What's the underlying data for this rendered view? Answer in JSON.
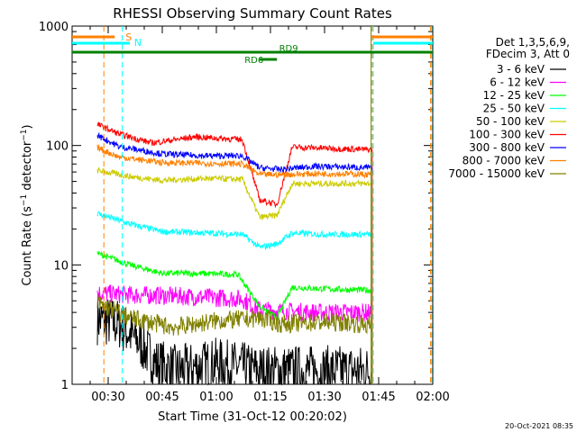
{
  "chart_data": {
    "type": "line",
    "title": "RHESSI Observing Summary Count Rates",
    "xlabel": "Start Time (31-Oct-12 00:20:02)",
    "ylabel": "Count Rate (s⁻¹ detector⁻¹)",
    "ylabel_main": "Count Rate (s",
    "ylabel_mid": " detector",
    "ylabel_end": ")",
    "yscale": "log",
    "ylim": [
      1,
      1000
    ],
    "xlim": [
      "00:20",
      "02:00"
    ],
    "grid": false,
    "x_ticks": [
      "00:30",
      "00:45",
      "01:00",
      "01:15",
      "01:30",
      "01:45",
      "02:00"
    ],
    "y_ticks": [
      "1",
      "10",
      "100",
      "1000"
    ],
    "legend_position": "right",
    "legend_header": [
      "Det 1,3,5,6,9,",
      "FDecim 3, Att 0"
    ],
    "flags": [
      {
        "label": "S",
        "color": "#ff8000"
      },
      {
        "label": "N",
        "color": "#00ffff"
      },
      {
        "label": "RD9",
        "color": "#008000"
      },
      {
        "label": "RD6",
        "color": "#008000"
      }
    ],
    "timestamp": "20-Oct-2021 08:35",
    "series": [
      {
        "name": "3 - 6 keV",
        "color": "#000000",
        "x": [
          0.45,
          0.55,
          0.65,
          0.72,
          0.82,
          1.0,
          1.1,
          1.2
        ],
        "y": [
          3.5,
          3.2,
          2.2,
          1.5,
          1.3,
          1.5,
          1.4,
          1.3
        ]
      },
      {
        "name": "6 - 12 keV",
        "color": "#ff00ff",
        "x": [
          0.45,
          0.6,
          0.8,
          1.0,
          1.12,
          1.2,
          1.3,
          1.45,
          1.6,
          1.72
        ],
        "y": [
          5.8,
          5.6,
          5.5,
          5.3,
          5.2,
          4.2,
          4.1,
          4.0,
          4.0,
          4.0
        ]
      },
      {
        "name": "12 - 25 keV",
        "color": "#00ff00",
        "x": [
          0.45,
          0.6,
          0.75,
          0.9,
          1.1,
          1.2,
          1.28,
          1.35,
          1.5,
          1.72
        ],
        "y": [
          12.5,
          10.0,
          8.5,
          8.5,
          8.3,
          4.5,
          3.6,
          6.5,
          6.3,
          6.1
        ]
      },
      {
        "name": "25 - 50 keV",
        "color": "#00ffff",
        "x": [
          0.45,
          0.6,
          0.75,
          0.95,
          1.12,
          1.2,
          1.28,
          1.35,
          1.5,
          1.72
        ],
        "y": [
          27,
          22,
          19,
          18.5,
          18,
          14,
          15,
          18.5,
          18,
          18
        ]
      },
      {
        "name": "50 - 100 keV",
        "color": "#cccc00",
        "x": [
          0.45,
          0.6,
          0.75,
          0.95,
          1.12,
          1.2,
          1.28,
          1.35,
          1.5,
          1.72
        ],
        "y": [
          62,
          55,
          51,
          53,
          52,
          25,
          26,
          48,
          48,
          48
        ]
      },
      {
        "name": "100 - 300 keV",
        "color": "#ff0000",
        "x": [
          0.45,
          0.55,
          0.7,
          0.9,
          1.12,
          1.2,
          1.28,
          1.35,
          1.5,
          1.72
        ],
        "y": [
          150,
          125,
          105,
          118,
          112,
          35,
          32,
          97,
          95,
          92
        ]
      },
      {
        "name": "300 - 800 keV",
        "color": "#0000ff",
        "x": [
          0.45,
          0.55,
          0.75,
          0.95,
          1.12,
          1.2,
          1.3,
          1.45,
          1.6,
          1.72
        ],
        "y": [
          122,
          98,
          85,
          82,
          82,
          65,
          63,
          67,
          66,
          65
        ]
      },
      {
        "name": "800 - 7000 keV",
        "color": "#ff8000",
        "x": [
          0.45,
          0.55,
          0.75,
          0.95,
          1.12,
          1.2,
          1.3,
          1.45,
          1.6,
          1.72
        ],
        "y": [
          96,
          80,
          72,
          71,
          70,
          57,
          57,
          58,
          58,
          57
        ]
      },
      {
        "name": "7000 - 15000 keV",
        "color": "#808000",
        "x": [
          0.45,
          0.6,
          0.8,
          1.0,
          1.12,
          1.2,
          1.3,
          1.45,
          1.6,
          1.72
        ],
        "y": [
          4.8,
          3.6,
          3.0,
          3.4,
          3.5,
          3.6,
          3.2,
          3.3,
          3.3,
          3.1
        ]
      }
    ]
  }
}
